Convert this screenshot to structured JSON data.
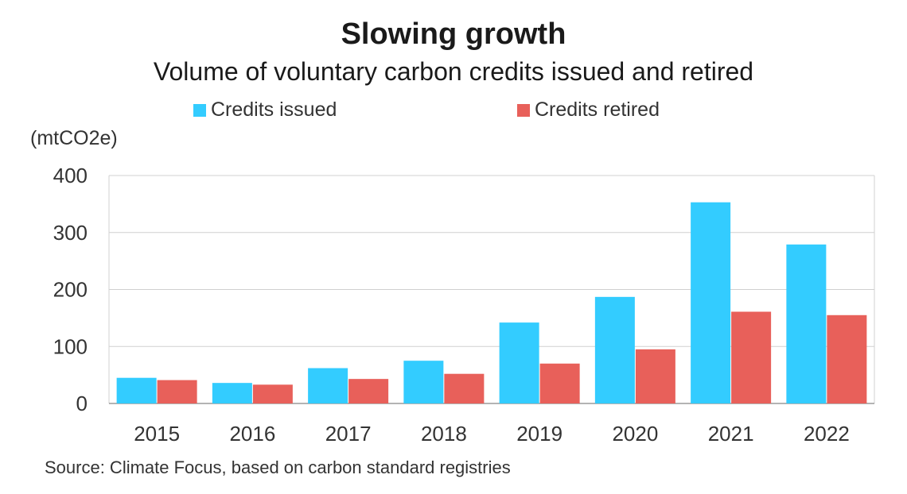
{
  "chart_data": {
    "type": "bar",
    "title": "Slowing growth",
    "subtitle": "Volume of voluntary carbon credits issued and retired",
    "ylabel": "(mtCO2e)",
    "xlabel": "",
    "categories": [
      "2015",
      "2016",
      "2017",
      "2018",
      "2019",
      "2020",
      "2021",
      "2022"
    ],
    "series": [
      {
        "name": "Credits issued",
        "color": "#33ccff",
        "values": [
          45,
          36,
          62,
          75,
          142,
          187,
          353,
          279
        ]
      },
      {
        "name": "Credits retired",
        "color": "#e8605a",
        "values": [
          41,
          33,
          43,
          52,
          70,
          95,
          161,
          155
        ]
      }
    ],
    "ylim": [
      0,
      400
    ],
    "yticks": [
      0,
      100,
      200,
      300,
      400
    ],
    "grid": true,
    "legend_position": "top",
    "source": "Source: Climate Focus, based on carbon standard registries"
  }
}
